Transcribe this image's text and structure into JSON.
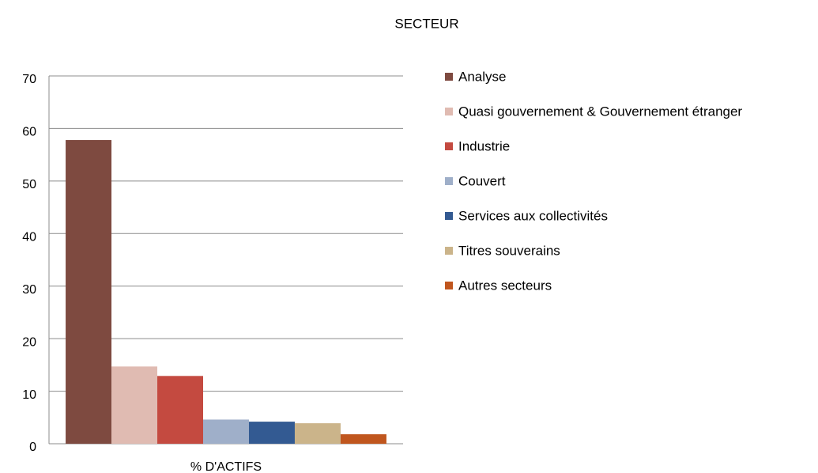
{
  "chart_data": {
    "type": "bar",
    "title": "SECTEUR",
    "categories": [
      "% D'ACTIFS"
    ],
    "series": [
      {
        "name": "Analyse",
        "color": "#7e4a40",
        "values": [
          57.8
        ]
      },
      {
        "name": "Quasi gouvernement & Gouvernement étranger",
        "color": "#e0bbb2",
        "values": [
          14.7
        ]
      },
      {
        "name": "Industrie",
        "color": "#c44a40",
        "values": [
          12.9
        ]
      },
      {
        "name": "Couvert",
        "color": "#9fafc9",
        "values": [
          4.6
        ]
      },
      {
        "name": "Services aux collectivités",
        "color": "#335a92",
        "values": [
          4.2
        ]
      },
      {
        "name": "Titres souverains",
        "color": "#cbb48a",
        "values": [
          3.9
        ]
      },
      {
        "name": "Autres secteurs",
        "color": "#c0561e",
        "values": [
          1.8
        ]
      }
    ],
    "ylim": [
      0,
      70
    ],
    "yticks": [
      0,
      10,
      20,
      30,
      40,
      50,
      60,
      70
    ],
    "grid": true,
    "legend": "right"
  }
}
